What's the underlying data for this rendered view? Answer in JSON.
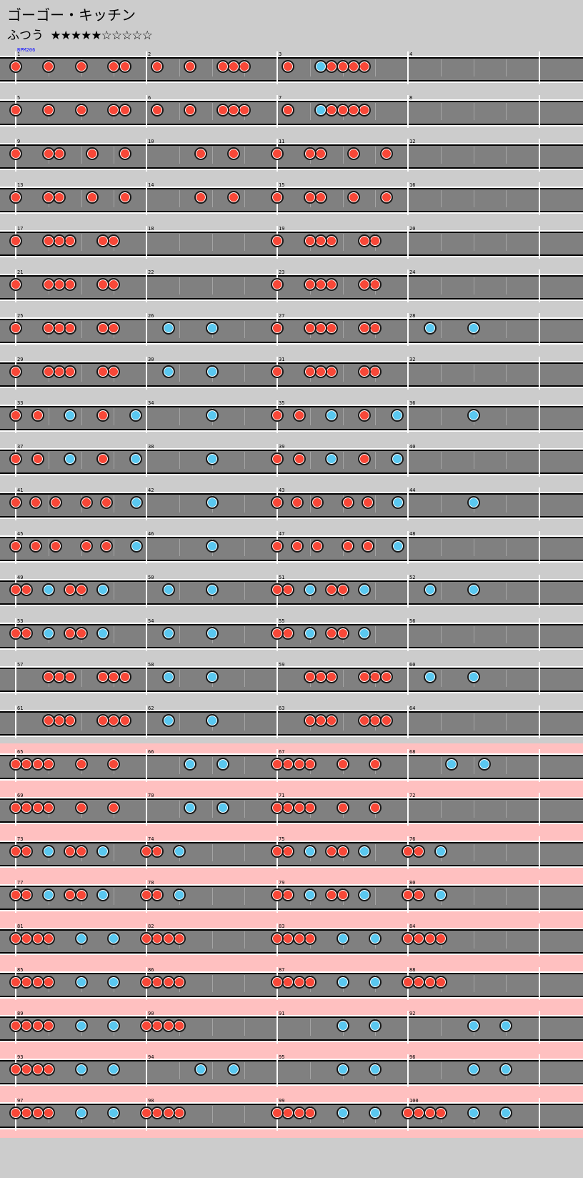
{
  "song": {
    "title": "ゴーゴー・キッチン",
    "difficulty_label": "ふつう",
    "stars_text": "★★★★★☆☆☆☆☆",
    "level": 5,
    "max_level": 10
  },
  "bpm_label": "BPM206",
  "colors": {
    "background": "#cccccc",
    "gogo_band": "#ffc0c0",
    "lane": "#808080",
    "don": "#f84838",
    "ka": "#5ac8f0"
  },
  "legend": {
    "d": "don",
    "k": "ka"
  },
  "gogo_from_row": 16,
  "rows": [
    {
      "measures": [
        1,
        2,
        3,
        4
      ],
      "notes": [
        "d..d..d..dd.",
        ".d..d..ddd..",
        ".d..kdddd...",
        "............"
      ]
    },
    {
      "measures": [
        5,
        6,
        7,
        8
      ],
      "notes": [
        "d..d..d..dd.",
        ".d..d..ddd..",
        ".d..kdddd...",
        "............"
      ]
    },
    {
      "measures": [
        9,
        10,
        11,
        12
      ],
      "notes": [
        "d..dd..d..d.",
        ".....d..d...",
        "d..dd..d..d.",
        "............"
      ]
    },
    {
      "measures": [
        13,
        14,
        15,
        16
      ],
      "notes": [
        "d..dd..d..d.",
        ".....d..d...",
        "d..dd..d..d.",
        "............"
      ]
    },
    {
      "measures": [
        17,
        18,
        19,
        20
      ],
      "notes": [
        "d..ddd..dd..",
        "............",
        "d..ddd..dd..",
        "............"
      ]
    },
    {
      "measures": [
        21,
        22,
        23,
        24
      ],
      "notes": [
        "d..ddd..dd..",
        "............",
        "d..ddd..dd..",
        "............"
      ]
    },
    {
      "measures": [
        25,
        26,
        27,
        28
      ],
      "notes": [
        "d..ddd..dd..",
        "..k...k.....",
        "d..ddd..dd..",
        "..k...k....."
      ]
    },
    {
      "measures": [
        29,
        30,
        31,
        32
      ],
      "notes": [
        "d..ddd..dd..",
        "..k...k.....",
        "d..ddd..dd..",
        "............"
      ]
    },
    {
      "measures": [
        33,
        34,
        35,
        36
      ],
      "notes": [
        "d.d..k..d..k",
        "......k.....",
        "d.d..k..d..k",
        "......k....."
      ]
    },
    {
      "measures": [
        37,
        38,
        39,
        40
      ],
      "notes": [
        "d.d..k..d..k",
        "......k.....",
        "d.d..k..d..k",
        "............"
      ]
    },
    {
      "measures": [
        41,
        42,
        43,
        44
      ],
      "notes": [
        "d.d.d..d.d..k",
        "......k.....",
        "d.d.d..d.d..k",
        "......k....."
      ]
    },
    {
      "measures": [
        45,
        46,
        47,
        48
      ],
      "notes": [
        "d.d.d..d.d..k",
        "......k.....",
        "d.d.d..d.d..k",
        "............"
      ]
    },
    {
      "measures": [
        49,
        50,
        51,
        52
      ],
      "notes": [
        "dd.k.dd.k...",
        "..k...k.....",
        "dd.k.dd.k...",
        "..k...k....."
      ]
    },
    {
      "measures": [
        53,
        54,
        55,
        56
      ],
      "notes": [
        "dd.k.dd.k...",
        "..k...k.....",
        "dd.k.dd.k...",
        "............"
      ]
    },
    {
      "measures": [
        57,
        58,
        59,
        60
      ],
      "notes": [
        "...ddd..ddd.",
        "..k...k.....",
        "...ddd..ddd.",
        "..k...k....."
      ]
    },
    {
      "measures": [
        61,
        62,
        63,
        64
      ],
      "notes": [
        "...ddd..ddd.",
        "..k...k.....",
        "...ddd..ddd.",
        "............"
      ]
    },
    {
      "measures": [
        65,
        66,
        67,
        68
      ],
      "notes": [
        "dddd..d..d..",
        "....k..k....",
        "dddd..d..d..",
        "....k..k...."
      ]
    },
    {
      "measures": [
        69,
        70,
        71,
        72
      ],
      "notes": [
        "dddd..d..d..",
        "....k..k....",
        "dddd..d..d..",
        "............"
      ]
    },
    {
      "measures": [
        73,
        74,
        75,
        76
      ],
      "notes": [
        "dd.k.dd.k...",
        "dd.k........",
        "dd.k.dd.k...",
        "dd.k........"
      ]
    },
    {
      "measures": [
        77,
        78,
        79,
        80
      ],
      "notes": [
        "dd.k.dd.k...",
        "dd.k........",
        "dd.k.dd.k...",
        "dd.k........"
      ]
    },
    {
      "measures": [
        81,
        82,
        83,
        84
      ],
      "notes": [
        "dddd..k..k..",
        "dddd........",
        "dddd..k..k..",
        "dddd........"
      ]
    },
    {
      "measures": [
        85,
        86,
        87,
        88
      ],
      "notes": [
        "dddd..k..k..",
        "dddd........",
        "dddd..k..k..",
        "dddd........"
      ]
    },
    {
      "measures": [
        89,
        90,
        91,
        92
      ],
      "notes": [
        "dddd..k..k..",
        "dddd........",
        "......k..k..",
        "......k..k.."
      ]
    },
    {
      "measures": [
        93,
        94,
        95,
        96
      ],
      "notes": [
        "dddd..k..k..",
        ".....k..k...",
        "......k..k..",
        "......k..k.."
      ]
    },
    {
      "measures": [
        97,
        98,
        99,
        100
      ],
      "notes": [
        "dddd..k..k..",
        "dddd........",
        "dddd..k..k..",
        "dddd..k..k.."
      ]
    }
  ]
}
